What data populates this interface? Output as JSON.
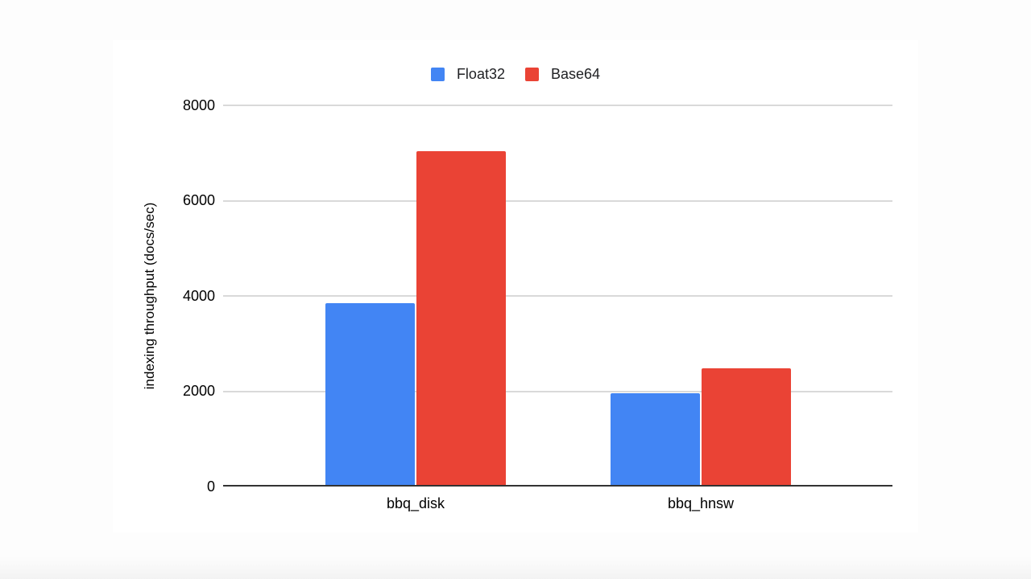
{
  "page": {
    "background": "#FDFDFD"
  },
  "chart_data": {
    "type": "bar",
    "title": "",
    "categories": [
      "bbq_disk",
      "bbq_hnsw"
    ],
    "series": [
      {
        "name": "Float32",
        "color": "#4285F4",
        "values": [
          3850,
          1960
        ]
      },
      {
        "name": "Base64",
        "color": "#EA4335",
        "values": [
          7030,
          2480
        ]
      }
    ],
    "xlabel": "",
    "ylabel": "indexing throughput (docs/sec)",
    "ylim": [
      0,
      8000
    ],
    "yticks": [
      0,
      2000,
      4000,
      6000,
      8000
    ],
    "grid": true,
    "legend_position": "top",
    "colors": {
      "gridline": "#D9D9D9",
      "axis_line": "#333333",
      "tick_text": "#000000",
      "legend_text": "#202124",
      "card_background": "#FFFFFF"
    }
  }
}
